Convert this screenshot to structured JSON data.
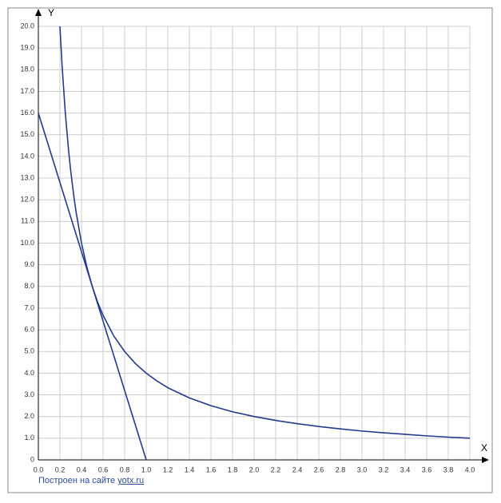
{
  "chart_data": {
    "type": "line",
    "xlabel": "X",
    "ylabel": "Y",
    "xlim": [
      0,
      4
    ],
    "ylim": [
      0,
      20
    ],
    "grid": true,
    "xticks": [
      {
        "value": 0,
        "label": "0.0"
      },
      0.2,
      0.4,
      0.6,
      0.8,
      {
        "value": 1,
        "label": "1.0"
      },
      1.2,
      1.4,
      1.6,
      1.8,
      {
        "value": 2,
        "label": "2.0"
      },
      2.2,
      2.4,
      2.6,
      2.8,
      {
        "value": 3,
        "label": "3.0"
      },
      3.2,
      3.4,
      3.6,
      3.8,
      {
        "value": 4,
        "label": "4.0"
      }
    ],
    "yticks": [
      0,
      {
        "value": 1,
        "label": "1.0"
      },
      {
        "value": 2,
        "label": "2.0"
      },
      {
        "value": 3,
        "label": "3.0"
      },
      {
        "value": 4,
        "label": "4.0"
      },
      {
        "value": 5,
        "label": "5.0"
      },
      {
        "value": 6,
        "label": "6.0"
      },
      {
        "value": 7,
        "label": "7.0"
      },
      {
        "value": 8,
        "label": "8.0"
      },
      {
        "value": 9,
        "label": "9.0"
      },
      {
        "value": 10,
        "label": "10.0"
      },
      {
        "value": 11,
        "label": "11.0"
      },
      {
        "value": 12,
        "label": "12.0"
      },
      {
        "value": 13,
        "label": "13.0"
      },
      {
        "value": 14,
        "label": "14.0"
      },
      {
        "value": 15,
        "label": "15.0"
      },
      {
        "value": 16,
        "label": "16.0"
      },
      {
        "value": 17,
        "label": "17.0"
      },
      {
        "value": 18,
        "label": "18.0"
      },
      {
        "value": 19,
        "label": "19.0"
      },
      {
        "value": 20,
        "label": "20.0"
      }
    ],
    "series": [
      {
        "color": "#233a8c",
        "x": [
          0.2,
          0.22,
          0.25,
          0.28,
          0.3,
          0.33,
          0.35,
          0.4,
          0.45,
          0.5,
          0.55,
          0.6,
          0.7,
          0.8,
          0.9,
          1.0,
          1.1,
          1.2,
          1.4,
          1.6,
          1.8,
          2.0,
          2.2,
          2.4,
          2.6,
          2.8,
          3.0,
          3.2,
          3.4,
          3.6,
          3.8,
          4.0
        ],
        "values": [
          20,
          18.18,
          16,
          14.29,
          13.33,
          12.12,
          11.43,
          10,
          8.89,
          8,
          7.27,
          6.67,
          5.71,
          5,
          4.44,
          4,
          3.64,
          3.33,
          2.86,
          2.5,
          2.22,
          2,
          1.82,
          1.67,
          1.54,
          1.43,
          1.33,
          1.25,
          1.18,
          1.11,
          1.05,
          1
        ]
      },
      {
        "color": "#233a8c",
        "x": [
          0,
          1
        ],
        "values": [
          16,
          0
        ]
      }
    ]
  },
  "footer": {
    "text": "Построен на сайте",
    "link": "yotx.ru"
  }
}
